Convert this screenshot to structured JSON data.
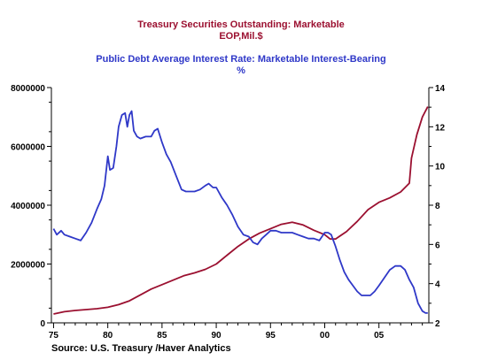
{
  "titles": {
    "left_series_title": "Treasury Securities Outstanding: Marketable",
    "left_series_units": "EOP,Mil.$",
    "right_series_title": "Public Debt Average Interest Rate: Marketable Interest-Bearing",
    "right_series_units": "%"
  },
  "source": "Source:  U.S. Treasury /Haver Analytics",
  "colors": {
    "left_series": "#9b1030",
    "right_series": "#2f38c8",
    "axis": "#000000"
  },
  "chart_data": {
    "type": "line",
    "title": "Treasury Securities Outstanding: Marketable",
    "xlim": [
      1974.8,
      2009.6
    ],
    "x_ticks": [
      1975,
      1980,
      1985,
      1990,
      1995,
      2000,
      2005
    ],
    "x_tick_labels": [
      "75",
      "80",
      "85",
      "90",
      "95",
      "00",
      "05"
    ],
    "left_axis": {
      "ylim": [
        0,
        8000000
      ],
      "ticks": [
        0,
        2000000,
        4000000,
        6000000,
        8000000
      ],
      "tick_labels": [
        "0",
        "2000000",
        "4000000",
        "6000000",
        "8000000"
      ]
    },
    "right_axis": {
      "ylim": [
        2,
        14
      ],
      "ticks": [
        2,
        4,
        6,
        8,
        10,
        12,
        14
      ],
      "tick_labels": [
        "2",
        "4",
        "6",
        "8",
        "10",
        "12",
        "14"
      ]
    },
    "grid": false,
    "series": [
      {
        "name": "Treasury Securities Outstanding: Marketable",
        "axis": "left",
        "x": [
          1975.0,
          1976.0,
          1977.0,
          1978.0,
          1979.0,
          1980.0,
          1981.0,
          1982.0,
          1983.0,
          1984.0,
          1985.0,
          1986.0,
          1987.0,
          1988.0,
          1989.0,
          1990.0,
          1991.0,
          1992.0,
          1993.0,
          1994.0,
          1995.0,
          1996.0,
          1997.0,
          1998.0,
          1999.0,
          2000.0,
          2000.5,
          2001.0,
          2002.0,
          2003.0,
          2004.0,
          2005.0,
          2006.0,
          2007.0,
          2007.8,
          2008.0,
          2008.5,
          2009.0,
          2009.5
        ],
        "y": [
          300000,
          380000,
          420000,
          450000,
          480000,
          530000,
          620000,
          750000,
          950000,
          1150000,
          1300000,
          1450000,
          1600000,
          1700000,
          1820000,
          2000000,
          2300000,
          2600000,
          2850000,
          3050000,
          3200000,
          3350000,
          3420000,
          3330000,
          3150000,
          3000000,
          2850000,
          2850000,
          3100000,
          3450000,
          3850000,
          4100000,
          4250000,
          4450000,
          4750000,
          5600000,
          6400000,
          7000000,
          7350000
        ]
      },
      {
        "name": "Public Debt Average Interest Rate: Marketable Interest-Bearing",
        "axis": "right",
        "x": [
          1975.0,
          1975.3,
          1975.7,
          1976.0,
          1976.5,
          1977.0,
          1977.5,
          1978.0,
          1978.5,
          1979.0,
          1979.4,
          1979.7,
          1980.0,
          1980.2,
          1980.5,
          1980.8,
          1981.0,
          1981.3,
          1981.6,
          1981.8,
          1982.0,
          1982.2,
          1982.4,
          1982.7,
          1983.0,
          1983.5,
          1984.0,
          1984.3,
          1984.6,
          1985.0,
          1985.4,
          1985.8,
          1986.3,
          1986.8,
          1987.2,
          1987.6,
          1988.0,
          1988.5,
          1989.0,
          1989.3,
          1989.7,
          1990.0,
          1990.5,
          1991.0,
          1991.5,
          1992.0,
          1992.5,
          1993.0,
          1993.4,
          1993.8,
          1994.2,
          1994.6,
          1995.0,
          1995.5,
          1996.0,
          1996.5,
          1997.0,
          1997.5,
          1998.0,
          1998.5,
          1999.0,
          1999.5,
          2000.0,
          2000.3,
          2000.6,
          2001.0,
          2001.4,
          2001.8,
          2002.2,
          2002.6,
          2003.0,
          2003.4,
          2003.8,
          2004.2,
          2004.6,
          2005.0,
          2005.5,
          2006.0,
          2006.5,
          2007.0,
          2007.4,
          2007.8,
          2008.2,
          2008.6,
          2009.0,
          2009.3,
          2009.5
        ],
        "y": [
          6.8,
          6.5,
          6.7,
          6.5,
          6.4,
          6.3,
          6.2,
          6.6,
          7.1,
          7.8,
          8.3,
          9.0,
          10.5,
          9.8,
          9.9,
          11.0,
          12.0,
          12.6,
          12.7,
          12.0,
          12.6,
          12.8,
          11.8,
          11.5,
          11.4,
          11.5,
          11.5,
          11.8,
          11.9,
          11.2,
          10.6,
          10.2,
          9.5,
          8.8,
          8.7,
          8.7,
          8.7,
          8.8,
          9.0,
          9.1,
          8.9,
          8.9,
          8.4,
          8.0,
          7.5,
          6.9,
          6.5,
          6.4,
          6.1,
          6.0,
          6.3,
          6.5,
          6.7,
          6.7,
          6.6,
          6.6,
          6.6,
          6.5,
          6.4,
          6.3,
          6.3,
          6.2,
          6.6,
          6.6,
          6.5,
          5.9,
          5.2,
          4.6,
          4.2,
          3.9,
          3.6,
          3.4,
          3.4,
          3.4,
          3.6,
          3.9,
          4.3,
          4.7,
          4.9,
          4.9,
          4.7,
          4.2,
          3.8,
          3.0,
          2.6,
          2.5,
          2.5
        ]
      }
    ]
  }
}
